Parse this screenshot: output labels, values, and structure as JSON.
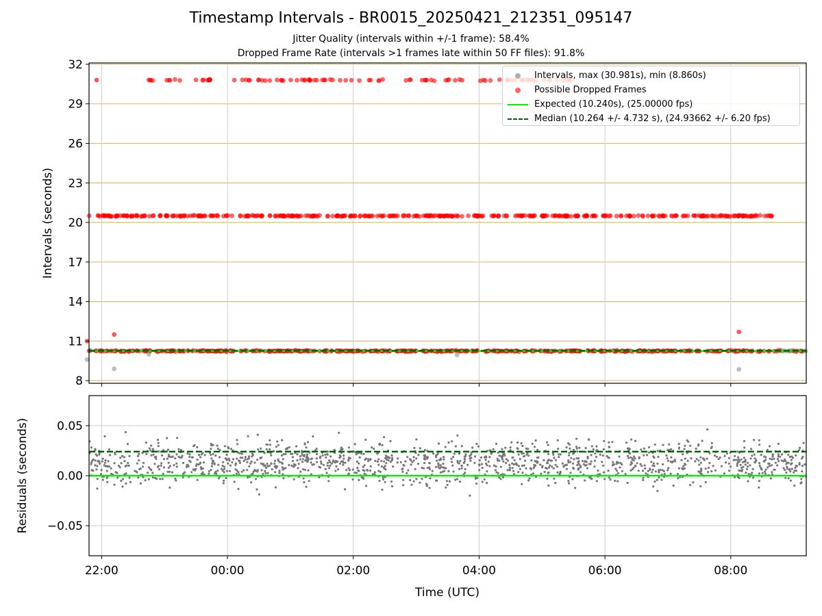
{
  "figure": {
    "title": "Timestamp Intervals - BR0015_20250421_212351_095147",
    "subtitle_1": "Jitter Quality (intervals within +/-1 frame): 58.4%",
    "subtitle_2": "Dropped Frame Rate (intervals >1 frames late within 50 FF files): 91.8%"
  },
  "legend": {
    "intervals": "Intervals, max (30.981s), min (8.860s)",
    "dropped": "Possible Dropped Frames",
    "expected": "Expected (10.240s), (25.00000 fps)",
    "median": "Median (10.264 +/- 4.732 s), (24.93662 +/- 6.20 fps)"
  },
  "colors": {
    "intervals": "#9a9a9a",
    "dropped": "#ff0000",
    "expected": "#00ee00",
    "median": "#006400",
    "residuals": "#777777",
    "gold_grid": "#d4bf80",
    "grid": "#cccccc"
  },
  "chart_data": [
    {
      "type": "scatter",
      "title": "",
      "xlabel": "",
      "ylabel": "Intervals (seconds)",
      "x_unit": "hours since 00:00 UTC (negative = 21-Apr)",
      "xlim": [
        -2.2,
        9.2
      ],
      "ylim": [
        7.8,
        32.1
      ],
      "yticks": [
        8,
        11,
        14,
        17,
        20,
        23,
        26,
        29,
        32
      ],
      "xticks": [
        -2,
        0,
        2,
        4,
        6,
        8
      ],
      "xtick_labels": [
        "22:00",
        "00:00",
        "02:00",
        "04:00",
        "06:00",
        "08:00"
      ],
      "reference_lines": {
        "expected": 10.24,
        "median": 10.264
      },
      "clusters": [
        {
          "series": "Possible Dropped Frames",
          "x_range": [
            -2.3,
            9.2
          ],
          "y_center": 10.25,
          "spread": 0.05
        },
        {
          "series": "Possible Dropped Frames",
          "x_range": [
            -2.3,
            8.7
          ],
          "y_center": 20.5,
          "spread": 0.05
        },
        {
          "series": "Possible Dropped Frames",
          "x_range": [
            -1.3,
            5.5
          ],
          "y_center": 30.8,
          "spread": 0.06
        }
      ],
      "notable_points": [
        {
          "series": "Possible Dropped Frames",
          "x": -2.23,
          "y": 11.0
        },
        {
          "series": "Possible Dropped Frames",
          "x": -1.8,
          "y": 11.5
        },
        {
          "series": "Possible Dropped Frames",
          "x": 8.13,
          "y": 11.7
        },
        {
          "series": "Possible Dropped Frames",
          "x": -2.08,
          "y": 30.8
        },
        {
          "series": "Intervals",
          "x": -2.23,
          "y": 9.6
        },
        {
          "series": "Intervals",
          "x": -1.8,
          "y": 8.9
        },
        {
          "series": "Intervals",
          "x": 8.13,
          "y": 8.86
        },
        {
          "series": "Intervals",
          "x": -1.25,
          "y": 10.0
        },
        {
          "series": "Intervals",
          "x": 3.65,
          "y": 9.95
        }
      ]
    },
    {
      "type": "scatter",
      "title": "",
      "xlabel": "Time (UTC)",
      "ylabel": "Residuals (seconds)",
      "xlim": [
        -2.2,
        9.2
      ],
      "ylim": [
        -0.08,
        0.08
      ],
      "yticks": [
        -0.05,
        0.0,
        0.05
      ],
      "ytick_labels": [
        "−0.05",
        "0.00",
        "0.05"
      ],
      "xticks": [
        -2,
        0,
        2,
        4,
        6,
        8
      ],
      "xtick_labels": [
        "22:00",
        "00:00",
        "02:00",
        "04:00",
        "06:00",
        "08:00"
      ],
      "reference_lines": {
        "expected": 0.0,
        "median": 0.024
      },
      "residual_distribution": {
        "x_range": [
          -2.6,
          9.2
        ],
        "mean": 0.013,
        "spread": 0.025
      }
    }
  ]
}
